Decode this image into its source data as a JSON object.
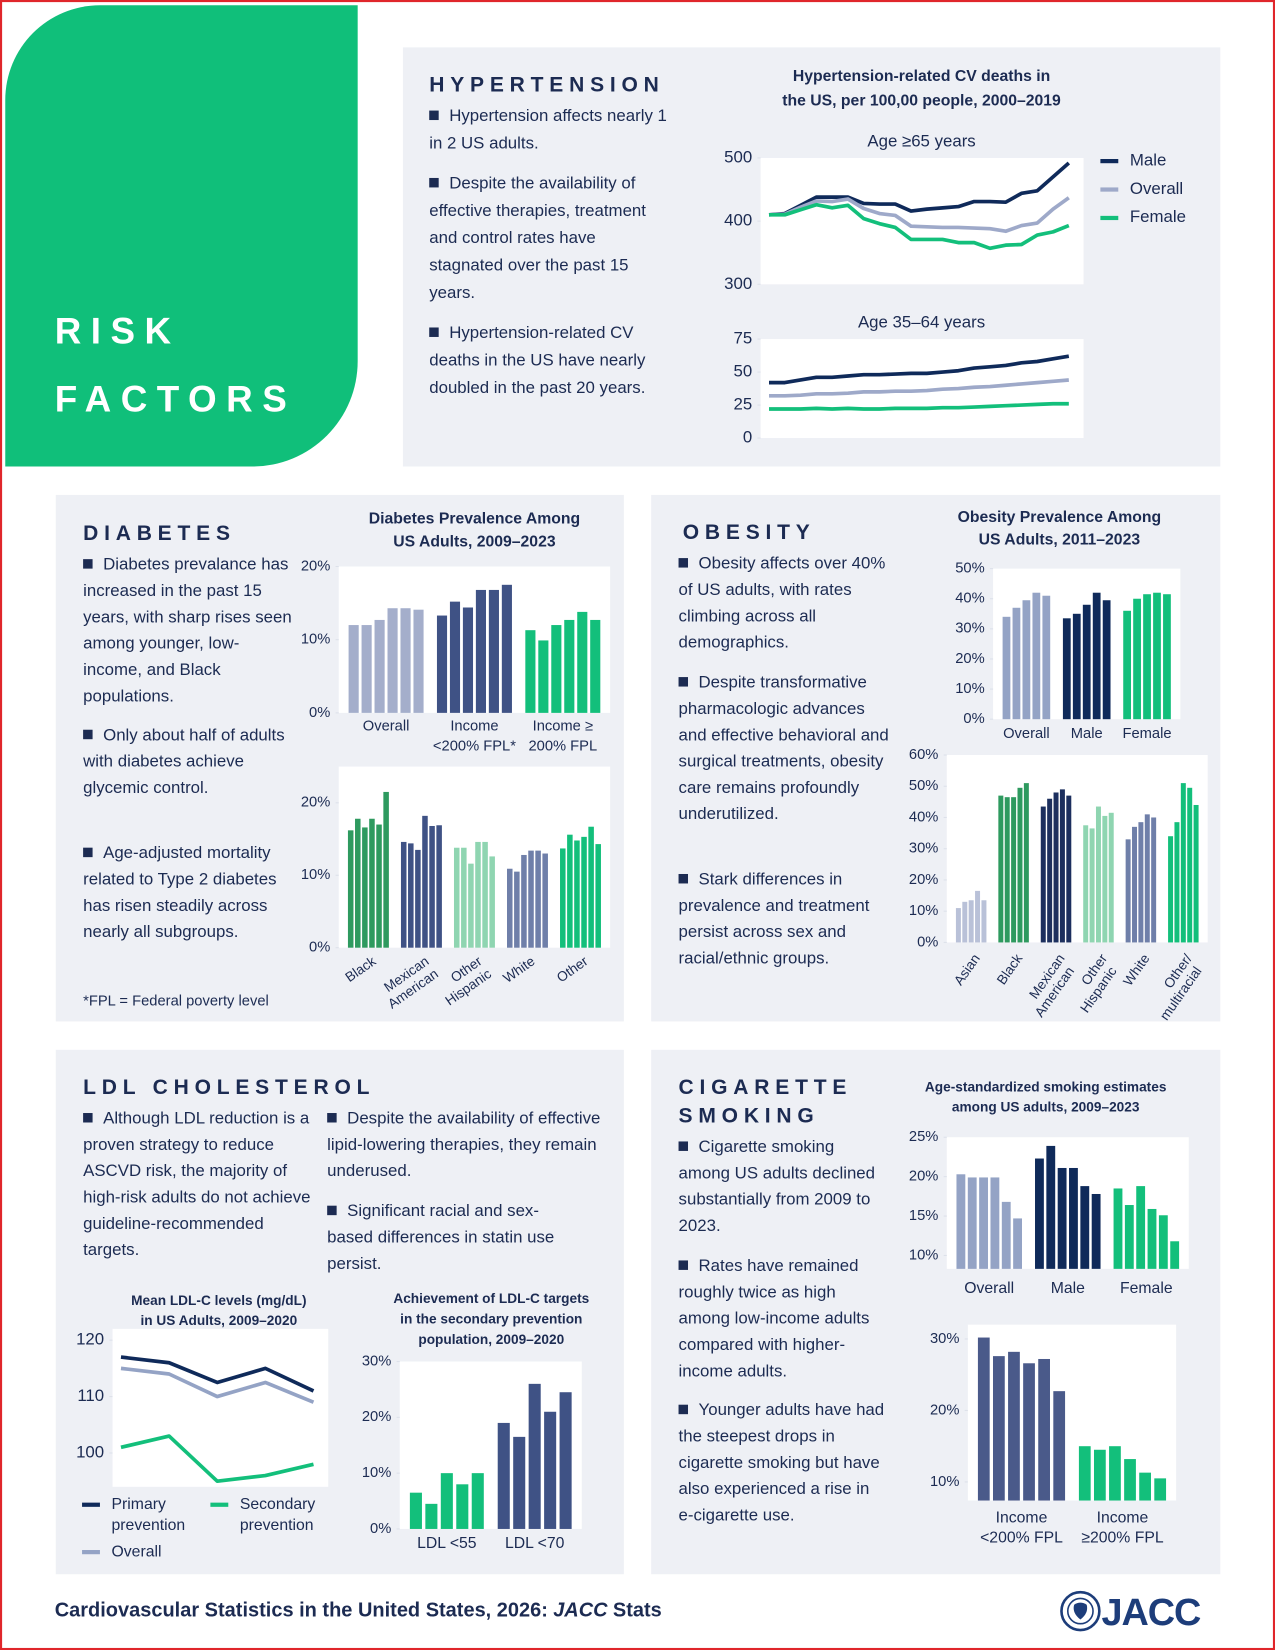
{
  "side_title": [
    "RISK",
    "FACTORS"
  ],
  "sections": [
    {
      "heading": "HYPERTENSION",
      "bullets": [
        "Hypertension affects nearly 1 in 2 US adults.",
        "Despite the availability of effective therapies, treatment and control rates have stagnated over the past 15 years.",
        "Hypertension-related CV deaths in the US have nearly doubled in the past 20 years."
      ]
    },
    {
      "heading": "DIABETES",
      "bullets": [
        "Diabetes prevalance has increased in the past 15 years, with sharp rises seen among younger, low-income, and Black populations.",
        "Only about half of adults with diabetes achieve glycemic control.",
        "Age-adjusted mortality related to Type 2 diabetes has risen steadily across nearly all subgroups."
      ]
    },
    {
      "heading": "OBESITY",
      "bullets": [
        "Obesity affects over 40% of US adults, with rates climbing across all demographics.",
        "Despite transformative pharmacologic advances and effective behavioral and surgical treatments, obesity care remains profoundly underutilized.",
        "Stark differences in prevalence and treatment persist across sex and racial/ethnic groups."
      ]
    },
    {
      "heading": "LDL CHOLESTEROL",
      "bullets": [
        "Although LDL reduction is a proven strategy to reduce ASCVD risk, the majority of high-risk adults do not achieve guideline-recommended targets.",
        "Despite the availability of effective lipid-lowering therapies, they remain underused.",
        "Significant racial and sex-based differences in statin use persist."
      ]
    },
    {
      "heading": "CIGARETTE SMOKING",
      "bullets": [
        "Cigarette smoking among US adults declined substantially from 2009 to 2023.",
        "Rates have remained roughly twice as high among low-income adults compared with higher-income adults.",
        "Younger adults have had the steepest drops in cigarette smoking but have also experienced a rise in e-cigarette use."
      ]
    }
  ],
  "footnote": "*FPL = Federal poverty level",
  "footer": {
    "start": "Cardiovascular Statistics in the United States, 2026:",
    "italic": "JACC",
    "end": "Stats"
  },
  "logo": "JACC",
  "chart_data": [
    {
      "type": "line",
      "title": [
        "Hypertension-related CV deaths in",
        "the US, per 100,00 people, 2000–2019"
      ],
      "subtitle": "Age ≥65 years",
      "ylim": [
        300,
        500
      ],
      "yticks": [
        300,
        400,
        500
      ],
      "series": [
        {
          "name": "Male",
          "color": "#0f2a5a",
          "values": [
            410,
            412,
            425,
            438,
            438,
            438,
            428,
            427,
            427,
            416,
            419,
            421,
            423,
            431,
            431,
            430,
            444,
            448,
            470,
            492
          ]
        },
        {
          "name": "Overall",
          "color": "#9ea9c9",
          "values": [
            410,
            411,
            422,
            432,
            431,
            435,
            420,
            412,
            409,
            392,
            391,
            390,
            390,
            389,
            388,
            384,
            393,
            397,
            419,
            437
          ]
        },
        {
          "name": "Female",
          "color": "#13bf7b",
          "values": [
            410,
            410,
            418,
            426,
            421,
            425,
            404,
            396,
            390,
            371,
            371,
            371,
            366,
            366,
            357,
            362,
            363,
            378,
            383,
            393
          ]
        }
      ]
    },
    {
      "type": "line",
      "subtitle": "Age 35–64 years",
      "ylim": [
        0,
        75
      ],
      "yticks": [
        0,
        25,
        50,
        75
      ],
      "series": [
        {
          "color": "#0f2a5a",
          "values": [
            42,
            42,
            44,
            46,
            46,
            47,
            48,
            48,
            48.5,
            49,
            49,
            50,
            51,
            53,
            54,
            55,
            57,
            58,
            60,
            62
          ]
        },
        {
          "color": "#9ea9c9",
          "values": [
            32,
            32,
            32.5,
            33.5,
            33.5,
            34,
            35,
            35,
            35.5,
            35.5,
            36,
            37,
            37.5,
            38.5,
            39,
            40,
            41,
            42,
            43,
            44
          ]
        },
        {
          "color": "#13bf7b",
          "values": [
            22,
            22,
            22,
            22.5,
            22,
            22.5,
            22,
            22,
            22.5,
            22.5,
            22.5,
            23,
            23,
            23.5,
            24,
            24.5,
            25,
            25.5,
            26,
            26
          ]
        }
      ]
    },
    {
      "type": "bar",
      "title": [
        "Diabetes Prevalence Among",
        "US Adults, 2009–2023"
      ],
      "ylim": [
        0,
        20
      ],
      "yticks": [
        {
          "value": 0,
          "label": "0%"
        },
        {
          "value": 10,
          "label": "10%"
        },
        {
          "value": 20,
          "label": "20%"
        }
      ],
      "groups": [
        {
          "label": [
            "Overall"
          ],
          "color": "#a4aecb",
          "values": [
            12,
            12,
            12.7,
            14.3,
            14.3,
            14.1
          ]
        },
        {
          "label": [
            "Income",
            "<200% FPL*"
          ],
          "color": "#3f5285",
          "values": [
            13.3,
            15.2,
            14.4,
            16.8,
            16.8,
            17.5
          ]
        },
        {
          "label": [
            "Income ≥",
            "200% FPL"
          ],
          "color": "#13bf7b",
          "values": [
            11.3,
            9.9,
            12,
            12.7,
            13.8,
            12.7
          ]
        }
      ]
    },
    {
      "type": "bar",
      "ylim": [
        0,
        25
      ],
      "yticks": [
        {
          "value": 0,
          "label": "0%"
        },
        {
          "value": 10,
          "label": "10%"
        },
        {
          "value": 20,
          "label": "20%"
        }
      ],
      "groups": [
        {
          "label": [
            "Black"
          ],
          "color": "#2e9a5f",
          "values": [
            16.2,
            17.8,
            16.6,
            17.8,
            17,
            21.5
          ]
        },
        {
          "label": [
            "Mexican",
            "American"
          ],
          "color": "#3f5285",
          "values": [
            14.6,
            14.4,
            13.5,
            18.2,
            16.8,
            16.9
          ]
        },
        {
          "label": [
            "Other",
            "Hispanic"
          ],
          "color": "#8fd5b1",
          "values": [
            13.8,
            13.8,
            11.6,
            14.6,
            14.6,
            12.6
          ]
        },
        {
          "label": [
            "White"
          ],
          "color": "#6f7fa9",
          "values": [
            10.9,
            10.5,
            12.8,
            13.4,
            13.4,
            13
          ]
        },
        {
          "label": [
            "Other"
          ],
          "color": "#13bf7b",
          "values": [
            13.7,
            15.6,
            14.8,
            15.3,
            16.7,
            14.3
          ]
        }
      ]
    },
    {
      "type": "bar",
      "title": [
        "Obesity Prevalence Among",
        "US Adults, 2011–2023"
      ],
      "ylim": [
        0,
        50
      ],
      "yticks": [
        {
          "value": 0,
          "label": "0%"
        },
        {
          "value": 10,
          "label": "10%"
        },
        {
          "value": 20,
          "label": "20%"
        },
        {
          "value": 30,
          "label": "30%"
        },
        {
          "value": 40,
          "label": "40%"
        },
        {
          "value": 50,
          "label": "50%"
        }
      ],
      "groups": [
        {
          "label": [
            "Overall"
          ],
          "color": "#94a3c5",
          "values": [
            34,
            37,
            39.5,
            42,
            41
          ]
        },
        {
          "label": [
            "Male"
          ],
          "color": "#0f2a5a",
          "values": [
            33.5,
            35,
            38,
            42,
            39.5
          ]
        },
        {
          "label": [
            "Female"
          ],
          "color": "#13bf7b",
          "values": [
            36,
            40,
            41.5,
            42,
            41.5
          ]
        }
      ]
    },
    {
      "type": "bar",
      "ylim": [
        0,
        60
      ],
      "yticks": [
        {
          "value": 0,
          "label": "0%"
        },
        {
          "value": 10,
          "label": "10%"
        },
        {
          "value": 20,
          "label": "20%"
        },
        {
          "value": 30,
          "label": "30%"
        },
        {
          "value": 40,
          "label": "40%"
        },
        {
          "value": 50,
          "label": "50%"
        },
        {
          "value": 60,
          "label": "60%"
        }
      ],
      "groups": [
        {
          "label": [
            "Asian"
          ],
          "color": "#b9c1d8",
          "values": [
            11,
            13,
            13.5,
            16.5,
            13.5
          ]
        },
        {
          "label": [
            "Black"
          ],
          "color": "#2e9a5f",
          "values": [
            47,
            46.5,
            46.5,
            49.5,
            51
          ]
        },
        {
          "label": [
            "Mexican",
            "American"
          ],
          "color": "#1c2f5e",
          "values": [
            43.5,
            46,
            48,
            49,
            47
          ]
        },
        {
          "label": [
            "Other",
            "Hispanic"
          ],
          "color": "#8fd5b1",
          "values": [
            37.5,
            36.5,
            43.5,
            40.5,
            41.5
          ]
        },
        {
          "label": [
            "White"
          ],
          "color": "#6f7fa9",
          "values": [
            33,
            37,
            38.5,
            41,
            40
          ]
        },
        {
          "label": [
            "Other/",
            "multiracial"
          ],
          "color": "#13bf7b",
          "values": [
            34,
            38.5,
            51,
            49.5,
            44
          ]
        }
      ]
    },
    {
      "type": "line",
      "title": [
        "Mean LDL-C levels (mg/dL)",
        "in US Adults, 2009–2020"
      ],
      "ylim": [
        94,
        122
      ],
      "yticks": [
        100,
        110,
        120
      ],
      "series": [
        {
          "name": "Primary prevention",
          "color": "#0f2a5a",
          "values": [
            117,
            116,
            112.5,
            115,
            111
          ]
        },
        {
          "name": "Secondary prevention",
          "color": "#13bf7b",
          "values": [
            101,
            103,
            95,
            96,
            98
          ]
        },
        {
          "name": "Overall",
          "color": "#94a3c5",
          "values": [
            115,
            114,
            110,
            112.5,
            109
          ]
        }
      ]
    },
    {
      "type": "bar",
      "title": [
        "Achievement of LDL-C targets",
        "in the secondary prevention",
        "population, 2009–2020"
      ],
      "ylim": [
        0,
        30
      ],
      "yticks": [
        {
          "value": 0,
          "label": "0%"
        },
        {
          "value": 10,
          "label": "10%"
        },
        {
          "value": 20,
          "label": "20%"
        },
        {
          "value": 30,
          "label": "30%"
        }
      ],
      "groups": [
        {
          "label": [
            "LDL <55"
          ],
          "color": "#13bf7b",
          "values": [
            6.5,
            4.5,
            10,
            8,
            10
          ]
        },
        {
          "label": [
            "LDL <70"
          ],
          "color": "#3f5285",
          "values": [
            19,
            16.5,
            26,
            21,
            24.5
          ]
        }
      ]
    },
    {
      "type": "bar",
      "title": [
        "Age-standardized smoking estimates",
        "among US adults, 2009–2023"
      ],
      "ylim": [
        8.3,
        25
      ],
      "yticks": [
        {
          "value": 10,
          "label": "10%"
        },
        {
          "value": 15,
          "label": "15%"
        },
        {
          "value": 20,
          "label": "20%"
        },
        {
          "value": 25,
          "label": "25%"
        }
      ],
      "groups": [
        {
          "label": [
            "Overall"
          ],
          "color": "#94a3c5",
          "values": [
            20.3,
            19.9,
            19.9,
            19.9,
            16.8,
            14.7
          ]
        },
        {
          "label": [
            "Male"
          ],
          "color": "#0f2a5a",
          "values": [
            22.3,
            23.9,
            21.1,
            21.1,
            18.8,
            17.8
          ]
        },
        {
          "label": [
            "Female"
          ],
          "color": "#13bf7b",
          "values": [
            18.5,
            16.4,
            18.8,
            15.9,
            15.1,
            11.8
          ]
        }
      ]
    },
    {
      "type": "bar",
      "ylim": [
        7.4,
        32
      ],
      "yticks": [
        {
          "value": 10,
          "label": "10%"
        },
        {
          "value": 20,
          "label": "20%"
        },
        {
          "value": 30,
          "label": "30%"
        }
      ],
      "groups": [
        {
          "label": [
            "Income",
            "<200% FPL"
          ],
          "color": "#4a5a8a",
          "values": [
            30.2,
            27.6,
            28.2,
            26.6,
            27.2,
            22.7
          ]
        },
        {
          "label": [
            "Income",
            "≥200% FPL"
          ],
          "color": "#13bf7b",
          "values": [
            15,
            14.5,
            15,
            13.2,
            11.3,
            10.5
          ]
        }
      ]
    }
  ]
}
